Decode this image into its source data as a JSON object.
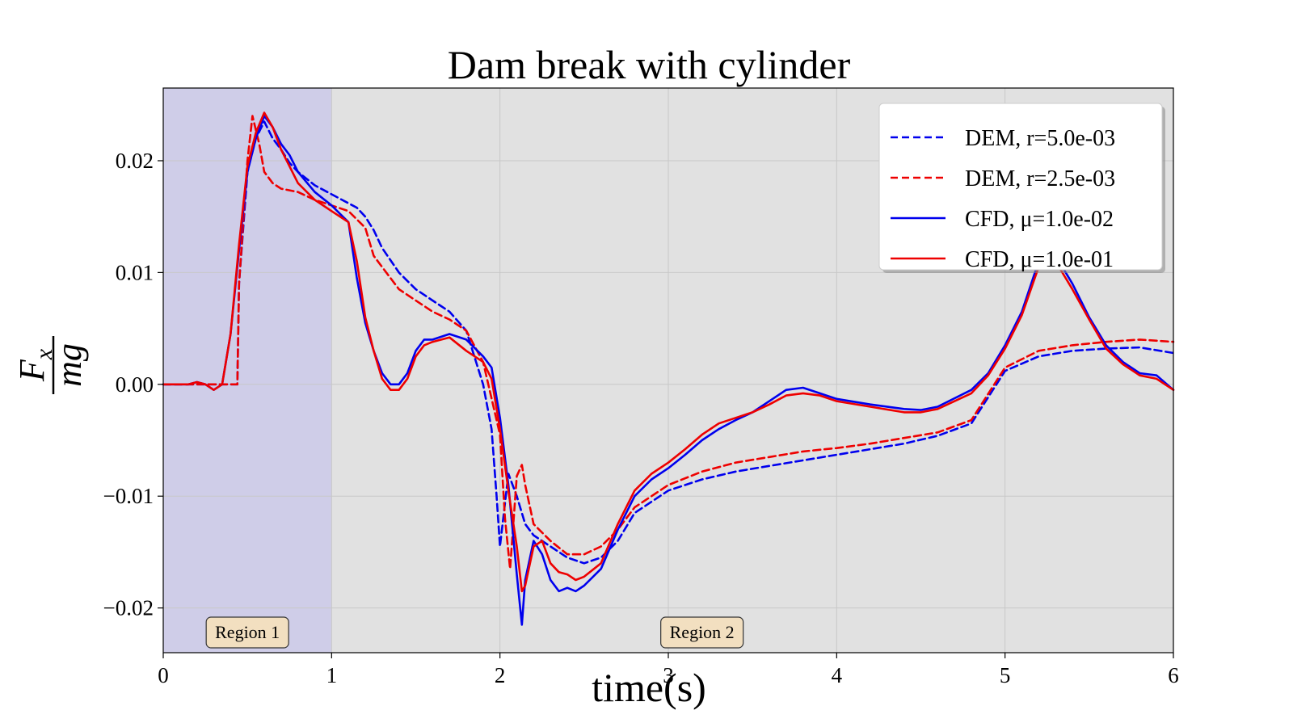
{
  "chart_data": {
    "type": "line",
    "title": "Dam break with cylinder",
    "xlabel": "time(s)",
    "ylabel": "Fx/mg",
    "ylabel_parts": {
      "numerator": "F",
      "subscript": "x",
      "denominator": "mg"
    },
    "xlim": [
      0,
      6
    ],
    "ylim": [
      -0.024,
      0.0265
    ],
    "xticks": [
      0,
      1,
      2,
      3,
      4,
      5,
      6
    ],
    "xtick_labels": [
      "0",
      "1",
      "2",
      "3",
      "4",
      "5",
      "6"
    ],
    "yticks": [
      -0.02,
      -0.01,
      0.0,
      0.01,
      0.02
    ],
    "ytick_labels": [
      "−0.02",
      "−0.01",
      "0.00",
      "0.01",
      "0.02"
    ],
    "grid": true,
    "legend_position": "top-right",
    "regions": [
      {
        "label": "Region 1",
        "x_range": [
          0,
          1
        ],
        "color": "#cfcde8",
        "label_x": 0.5
      },
      {
        "label": "Region 2",
        "x_range": [
          1,
          6
        ],
        "color": "#e1e1e1",
        "label_x": 3.2
      }
    ],
    "series": [
      {
        "name": "DEM, r=5.0e-03",
        "color": "#0000ee",
        "style": "dashed",
        "x": [
          0,
          0.2,
          0.3,
          0.44,
          0.45,
          0.5,
          0.55,
          0.6,
          0.65,
          0.7,
          0.75,
          0.8,
          0.9,
          1.0,
          1.1,
          1.15,
          1.2,
          1.25,
          1.3,
          1.4,
          1.5,
          1.6,
          1.7,
          1.8,
          1.9,
          1.95,
          1.98,
          2.0,
          2.05,
          2.1,
          2.15,
          2.2,
          2.3,
          2.4,
          2.5,
          2.6,
          2.7,
          2.8,
          3.0,
          3.2,
          3.4,
          3.6,
          3.8,
          4.0,
          4.2,
          4.4,
          4.6,
          4.8,
          5.0,
          5.2,
          5.4,
          5.6,
          5.8,
          6.0
        ],
        "y": [
          0,
          0,
          0,
          0,
          0.009,
          0.019,
          0.022,
          0.0235,
          0.022,
          0.021,
          0.0198,
          0.019,
          0.0178,
          0.017,
          0.0162,
          0.0158,
          0.015,
          0.0138,
          0.0122,
          0.01,
          0.0085,
          0.0075,
          0.0065,
          0.0048,
          0.0,
          -0.004,
          -0.01,
          -0.0145,
          -0.008,
          -0.01,
          -0.0125,
          -0.0135,
          -0.0145,
          -0.0155,
          -0.016,
          -0.0155,
          -0.014,
          -0.0115,
          -0.0095,
          -0.0085,
          -0.0078,
          -0.0073,
          -0.0068,
          -0.0063,
          -0.0058,
          -0.0053,
          -0.0046,
          -0.0035,
          0.0012,
          0.0025,
          0.003,
          0.0032,
          0.0033,
          0.0028
        ]
      },
      {
        "name": "DEM, r=2.5e-03",
        "color": "#ee0000",
        "style": "dashed",
        "x": [
          0,
          0.2,
          0.3,
          0.44,
          0.45,
          0.5,
          0.53,
          0.57,
          0.6,
          0.65,
          0.7,
          0.8,
          0.9,
          1.0,
          1.1,
          1.2,
          1.25,
          1.3,
          1.4,
          1.5,
          1.6,
          1.7,
          1.8,
          1.9,
          2.0,
          2.03,
          2.06,
          2.1,
          2.13,
          2.15,
          2.2,
          2.3,
          2.4,
          2.5,
          2.6,
          2.7,
          2.8,
          3.0,
          3.2,
          3.4,
          3.6,
          3.8,
          4.0,
          4.2,
          4.4,
          4.6,
          4.8,
          5.0,
          5.2,
          5.4,
          5.6,
          5.8,
          6.0
        ],
        "y": [
          0,
          0,
          0,
          0,
          0.009,
          0.02,
          0.024,
          0.0215,
          0.019,
          0.018,
          0.0175,
          0.0172,
          0.0165,
          0.016,
          0.0155,
          0.014,
          0.0115,
          0.0105,
          0.0085,
          0.0075,
          0.0065,
          0.0058,
          0.0048,
          0.002,
          -0.0045,
          -0.012,
          -0.0165,
          -0.0082,
          -0.0072,
          -0.009,
          -0.0125,
          -0.014,
          -0.0152,
          -0.0152,
          -0.0145,
          -0.013,
          -0.011,
          -0.009,
          -0.0078,
          -0.007,
          -0.0065,
          -0.006,
          -0.0057,
          -0.0053,
          -0.0048,
          -0.0043,
          -0.0032,
          0.0015,
          0.003,
          0.0035,
          0.0038,
          0.004,
          0.0038
        ]
      },
      {
        "name": "CFD, μ=1.0e-02",
        "color": "#0000ee",
        "style": "solid",
        "x": [
          0,
          0.15,
          0.2,
          0.25,
          0.3,
          0.35,
          0.4,
          0.45,
          0.5,
          0.55,
          0.6,
          0.65,
          0.7,
          0.75,
          0.8,
          0.9,
          1.0,
          1.1,
          1.15,
          1.2,
          1.25,
          1.3,
          1.35,
          1.4,
          1.45,
          1.5,
          1.55,
          1.6,
          1.7,
          1.8,
          1.9,
          1.95,
          2.0,
          2.05,
          2.1,
          2.13,
          2.15,
          2.2,
          2.25,
          2.3,
          2.35,
          2.4,
          2.45,
          2.5,
          2.6,
          2.7,
          2.8,
          2.9,
          3.0,
          3.1,
          3.2,
          3.3,
          3.4,
          3.5,
          3.6,
          3.7,
          3.8,
          3.9,
          4.0,
          4.2,
          4.4,
          4.5,
          4.6,
          4.8,
          4.9,
          5.0,
          5.1,
          5.2,
          5.25,
          5.3,
          5.4,
          5.5,
          5.6,
          5.7,
          5.8,
          5.9,
          6.0
        ],
        "y": [
          0,
          0,
          0.0002,
          0.0,
          -0.0005,
          0.0,
          0.0045,
          0.012,
          0.019,
          0.022,
          0.024,
          0.023,
          0.0215,
          0.0205,
          0.019,
          0.0172,
          0.016,
          0.0145,
          0.0095,
          0.0055,
          0.003,
          0.001,
          0.0,
          0.0,
          0.001,
          0.003,
          0.004,
          0.004,
          0.0045,
          0.004,
          0.0025,
          0.0015,
          -0.003,
          -0.009,
          -0.017,
          -0.0215,
          -0.0175,
          -0.014,
          -0.0152,
          -0.0175,
          -0.0185,
          -0.0182,
          -0.0185,
          -0.018,
          -0.0165,
          -0.013,
          -0.01,
          -0.0085,
          -0.0075,
          -0.0063,
          -0.005,
          -0.004,
          -0.0032,
          -0.0025,
          -0.0015,
          -0.0005,
          -0.0003,
          -0.0008,
          -0.0013,
          -0.0018,
          -0.0022,
          -0.0023,
          -0.002,
          -0.0005,
          0.001,
          0.0035,
          0.0065,
          0.011,
          0.013,
          0.0115,
          0.009,
          0.006,
          0.0035,
          0.002,
          0.001,
          0.0008,
          -0.0005
        ]
      },
      {
        "name": "CFD, μ=1.0e-01",
        "color": "#ee0000",
        "style": "solid",
        "x": [
          0,
          0.15,
          0.2,
          0.25,
          0.3,
          0.35,
          0.4,
          0.45,
          0.5,
          0.55,
          0.6,
          0.65,
          0.7,
          0.75,
          0.8,
          0.9,
          1.0,
          1.1,
          1.15,
          1.2,
          1.25,
          1.3,
          1.35,
          1.4,
          1.45,
          1.5,
          1.55,
          1.6,
          1.7,
          1.8,
          1.9,
          1.95,
          2.0,
          2.05,
          2.1,
          2.13,
          2.15,
          2.2,
          2.25,
          2.3,
          2.35,
          2.4,
          2.45,
          2.5,
          2.6,
          2.7,
          2.8,
          2.9,
          3.0,
          3.1,
          3.2,
          3.3,
          3.4,
          3.5,
          3.6,
          3.7,
          3.8,
          3.9,
          4.0,
          4.2,
          4.4,
          4.5,
          4.6,
          4.8,
          4.9,
          5.0,
          5.1,
          5.2,
          5.25,
          5.3,
          5.4,
          5.5,
          5.6,
          5.7,
          5.8,
          5.9,
          6.0
        ],
        "y": [
          0,
          0,
          0.0002,
          0.0,
          -0.0005,
          0.0,
          0.0045,
          0.0125,
          0.0195,
          0.0225,
          0.0243,
          0.023,
          0.021,
          0.0195,
          0.018,
          0.0165,
          0.0155,
          0.0145,
          0.011,
          0.006,
          0.003,
          0.0005,
          -0.0005,
          -0.0005,
          0.0005,
          0.0025,
          0.0035,
          0.0038,
          0.0042,
          0.003,
          0.002,
          0.0005,
          -0.004,
          -0.0095,
          -0.0145,
          -0.0185,
          -0.018,
          -0.0145,
          -0.014,
          -0.016,
          -0.0168,
          -0.017,
          -0.0175,
          -0.0172,
          -0.016,
          -0.0125,
          -0.0095,
          -0.008,
          -0.007,
          -0.0058,
          -0.0045,
          -0.0035,
          -0.003,
          -0.0025,
          -0.0018,
          -0.001,
          -0.0008,
          -0.001,
          -0.0015,
          -0.002,
          -0.0025,
          -0.0025,
          -0.0022,
          -0.0008,
          0.0008,
          0.0032,
          0.0062,
          0.0105,
          0.0125,
          0.011,
          0.0085,
          0.0058,
          0.0032,
          0.0018,
          0.0008,
          0.0005,
          -0.0005
        ]
      }
    ]
  }
}
